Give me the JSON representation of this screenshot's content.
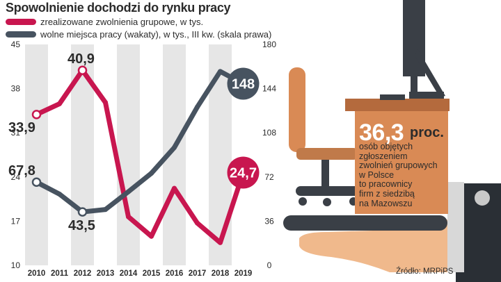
{
  "title": "Spowolnienie dochodzi do rynku pracy",
  "colors": {
    "red": "#c8164f",
    "gray": "#475360",
    "band": "#e6e6e6",
    "text": "#2b2b2b",
    "orange": "#d98a55",
    "orange_dark": "#b46a3d",
    "hand": "#f0b98c"
  },
  "chart_data": {
    "type": "line",
    "title": "Spowolnienie dochodzi do rynku pracy",
    "x": [
      "2010",
      "2011",
      "2012",
      "2013",
      "2014",
      "2015",
      "2016",
      "2017",
      "2018",
      "2019"
    ],
    "series": [
      {
        "name": "zrealizowane zwolnienia grupowe, w tys.",
        "axis": "left",
        "color": "#c8164f",
        "values": [
          33.9,
          35.6,
          40.9,
          35.8,
          17.7,
          14.6,
          22.2,
          16.7,
          13.6,
          24.7
        ]
      },
      {
        "name": "wolne miejsca pracy (wakaty), w tys., III kw. (skala prawa)",
        "axis": "right",
        "color": "#475360",
        "values": [
          67.8,
          58.0,
          43.5,
          45.5,
          60.0,
          75.0,
          96.0,
          129.0,
          158.0,
          148.0
        ]
      }
    ],
    "y_left": {
      "range": [
        10,
        45
      ],
      "ticks": [
        "45",
        "38",
        "31",
        "24",
        "17",
        "10"
      ]
    },
    "y_right": {
      "range": [
        0,
        180
      ],
      "ticks": [
        "180",
        "144",
        "108",
        "72",
        "36",
        "0"
      ]
    },
    "annotations": [
      {
        "series": 0,
        "index": 0,
        "label": "33,9",
        "style": "text"
      },
      {
        "series": 0,
        "index": 2,
        "label": "40,9",
        "style": "text"
      },
      {
        "series": 0,
        "index": 9,
        "label": "24,7",
        "style": "bubble"
      },
      {
        "series": 1,
        "index": 0,
        "label": "67,8",
        "style": "text"
      },
      {
        "series": 1,
        "index": 2,
        "label": "43,5",
        "style": "text"
      },
      {
        "series": 1,
        "index": 9,
        "label": "148",
        "style": "bubble"
      }
    ],
    "grid": "alternating vertical bands",
    "legend": "top-left"
  },
  "callout": {
    "value": "36,3",
    "unit": "proc.",
    "description_lines": [
      "osób objętych",
      "zgłoszeniem",
      "zwolnień grupowych",
      "w Polsce",
      "to pracownicy",
      "firm z siedzibą",
      "na Mazowszu"
    ]
  },
  "source": "Źródło: MRPiPS"
}
